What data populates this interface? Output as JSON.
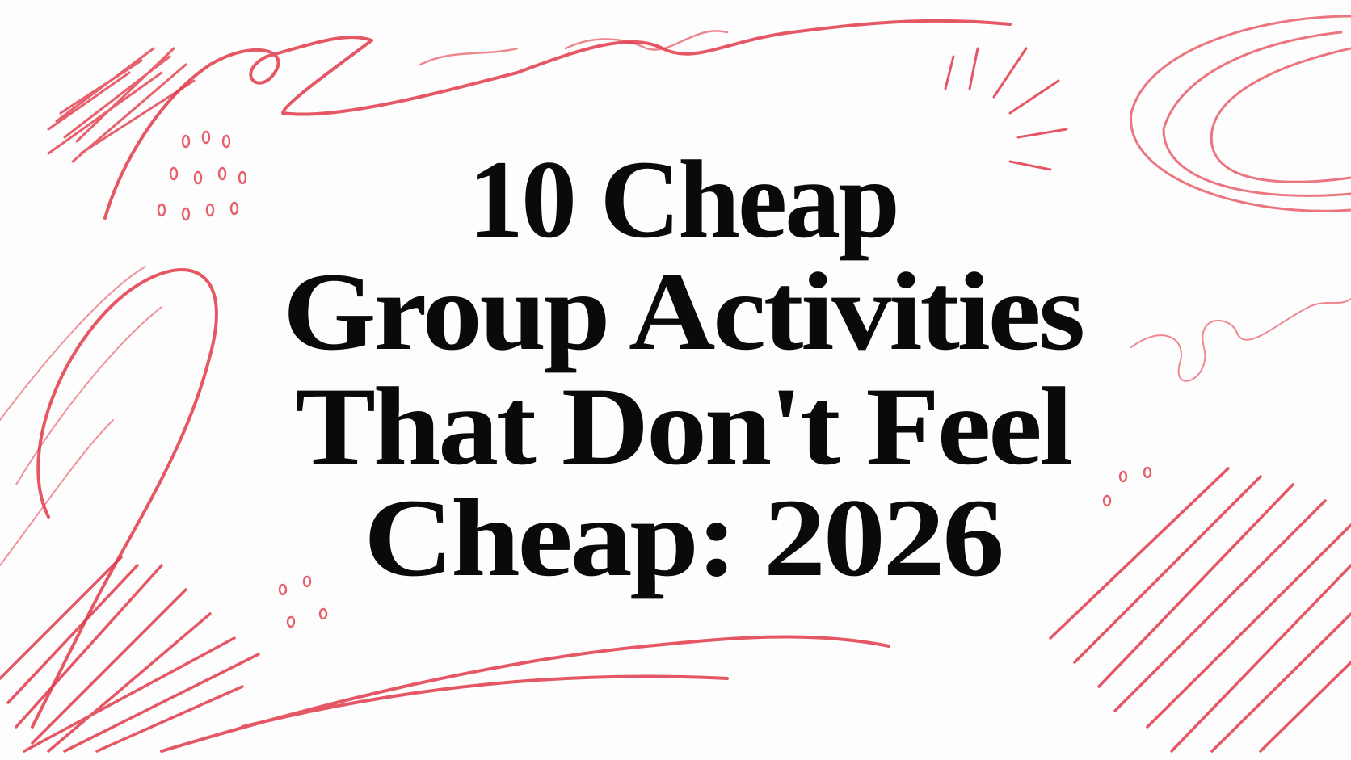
{
  "headline": {
    "lines": [
      "10 Cheap",
      "Group Activities",
      "That Don't Feel",
      "Cheap: 2026"
    ]
  }
}
